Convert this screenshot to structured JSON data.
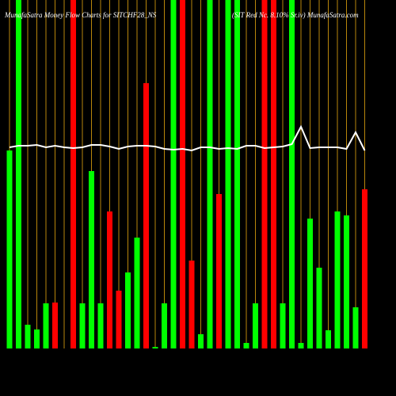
{
  "chart_data": {
    "type": "bar",
    "title": "MunafaSatra  Money  Flow  Charts for SITCHF28_NS",
    "subtitle": "(SIT Red Nc. 8.10% Sr.iv) MunafaSatra.com",
    "categories": [
      null,
      null,
      null,
      null,
      null,
      null,
      null,
      null,
      null,
      null,
      null,
      null,
      null,
      null,
      null,
      null,
      null,
      null,
      null,
      null,
      null,
      null,
      null,
      null,
      null,
      null,
      null,
      null,
      null,
      null,
      null,
      null,
      null,
      null,
      null,
      null,
      null,
      null,
      null,
      null
    ],
    "values": [
      250,
      440,
      30,
      24,
      57,
      58,
      0,
      440,
      57,
      224,
      57,
      173,
      73,
      96,
      140,
      335,
      2,
      57,
      440,
      440,
      111,
      18,
      440,
      195,
      440,
      440,
      7,
      57,
      440,
      440,
      57,
      440,
      7,
      164,
      102,
      23,
      173,
      168,
      52,
      201
    ],
    "bar_colors": [
      "#00ff00",
      "#00ff00",
      "#00ff00",
      "#00ff00",
      "#00ff00",
      "#ff0000",
      "#00ff00",
      "#ff0000",
      "#00ff00",
      "#00ff00",
      "#00ff00",
      "#ff0000",
      "#ff0000",
      "#00ff00",
      "#00ff00",
      "#ff0000",
      "#00ff00",
      "#00ff00",
      "#00ff00",
      "#ff0000",
      "#ff0000",
      "#00ff00",
      "#00ff00",
      "#ff0000",
      "#00ff00",
      "#00ff00",
      "#00ff00",
      "#00ff00",
      "#ff0000",
      "#ff0000",
      "#00ff00",
      "#00ff00",
      "#00ff00",
      "#00ff00",
      "#00ff00",
      "#00ff00",
      "#00ff00",
      "#00ff00",
      "#00ff00",
      "#ff0000"
    ],
    "line": {
      "color": "#ffffff",
      "values": [
        254,
        256,
        256,
        257,
        254,
        256,
        254,
        253,
        254,
        257,
        257,
        255,
        252,
        255,
        256,
        256,
        255,
        252,
        251,
        252,
        250,
        254,
        254,
        252,
        253,
        252,
        256,
        256,
        253,
        254,
        255,
        258,
        280,
        253,
        254,
        254,
        254,
        252,
        273,
        250
      ]
    },
    "grid_color": "#b8860b",
    "ylim": [
      0,
      440
    ]
  }
}
